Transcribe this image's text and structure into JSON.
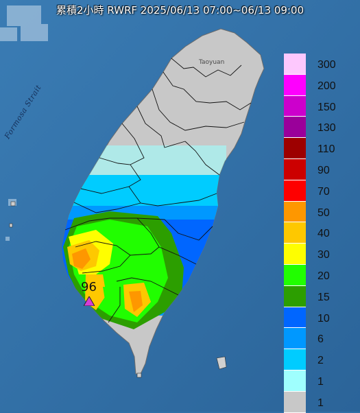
{
  "title": "累積2小時 RWRF 2025/06/13 07:00~06/13 09:00",
  "labels": {
    "strait": "Formosa Strait",
    "city": "Taoyuan"
  },
  "max_marker": {
    "value": "96",
    "color": "#d63cd6"
  },
  "colors": {
    "sea": "#2f6fa6",
    "land": "#c8c8c8",
    "border": "#ffffff"
  },
  "legend": {
    "items": [
      {
        "label": "300",
        "color": "#fdc8fd"
      },
      {
        "label": "200",
        "color": "#fe00fe"
      },
      {
        "label": "150",
        "color": "#cc00cc"
      },
      {
        "label": "130",
        "color": "#9a009a"
      },
      {
        "label": "110",
        "color": "#9d0000"
      },
      {
        "label": "90",
        "color": "#cc0000"
      },
      {
        "label": "70",
        "color": "#fe0000"
      },
      {
        "label": "50",
        "color": "#fe9700"
      },
      {
        "label": "40",
        "color": "#fec800"
      },
      {
        "label": "30",
        "color": "#fefe00"
      },
      {
        "label": "20",
        "color": "#21fe00"
      },
      {
        "label": "15",
        "color": "#2c9e00"
      },
      {
        "label": "10",
        "color": "#0066ff"
      },
      {
        "label": "6",
        "color": "#0098ff"
      },
      {
        "label": "2",
        "color": "#00ccff"
      },
      {
        "label": "1",
        "color": "#9ffffe"
      },
      {
        "label": "1",
        "color": "#c8c8c8"
      }
    ]
  }
}
